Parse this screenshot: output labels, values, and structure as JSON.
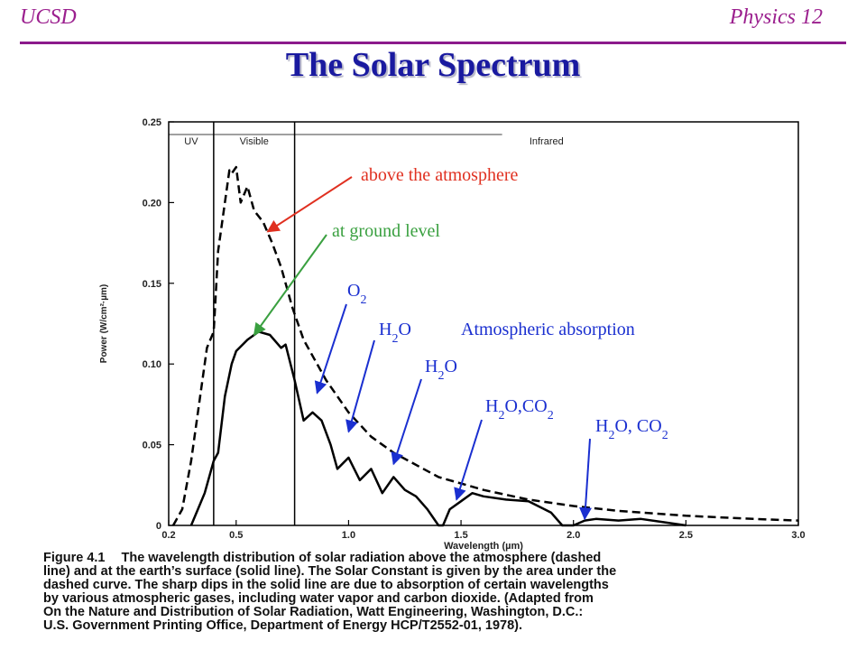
{
  "header": {
    "left": "UCSD",
    "right": "Physics 12"
  },
  "title": "The Solar Spectrum",
  "colors": {
    "header": "#9b1f8e",
    "title": "#1a1aa0",
    "above": "#e03020",
    "ground": "#3aa040",
    "absorb": "#1a2fd0"
  },
  "chart_data": {
    "type": "line",
    "xlabel": "Wavelength (µm)",
    "ylabel": "Power (W/cm²·µm)",
    "xlim": [
      0.2,
      3.0
    ],
    "ylim": [
      0,
      0.25
    ],
    "xticks": [
      "0.2",
      "0.5",
      "1.0",
      "1.5",
      "2.0",
      "2.5",
      "3.0"
    ],
    "xtick_values": [
      0.2,
      0.5,
      1.0,
      1.5,
      2.0,
      2.5,
      3.0
    ],
    "yticks": [
      "0",
      "0.05",
      "0.10",
      "0.15",
      "0.20",
      "0.25"
    ],
    "ytick_values": [
      0,
      0.05,
      0.1,
      0.15,
      0.2,
      0.25
    ],
    "regions": [
      "UV",
      "Visible",
      "Infrared"
    ],
    "region_bounds": [
      0.4,
      0.76
    ],
    "series": [
      {
        "style": "dashed",
        "x": [
          0.22,
          0.26,
          0.3,
          0.32,
          0.35,
          0.37,
          0.4,
          0.42,
          0.45,
          0.47,
          0.48,
          0.5,
          0.52,
          0.55,
          0.58,
          0.62,
          0.66,
          0.7,
          0.75,
          0.8,
          0.9,
          1.0,
          1.1,
          1.2,
          1.4,
          1.6,
          1.8,
          2.0,
          2.2,
          2.5,
          2.8,
          3.0
        ],
        "y": [
          0.0,
          0.01,
          0.04,
          0.06,
          0.09,
          0.11,
          0.12,
          0.17,
          0.2,
          0.22,
          0.218,
          0.222,
          0.2,
          0.21,
          0.195,
          0.188,
          0.175,
          0.16,
          0.135,
          0.115,
          0.09,
          0.07,
          0.055,
          0.045,
          0.03,
          0.022,
          0.016,
          0.012,
          0.009,
          0.006,
          0.004,
          0.003
        ]
      },
      {
        "style": "solid",
        "x": [
          0.3,
          0.33,
          0.36,
          0.4,
          0.42,
          0.45,
          0.48,
          0.5,
          0.55,
          0.6,
          0.65,
          0.7,
          0.72,
          0.76,
          0.8,
          0.84,
          0.88,
          0.92,
          0.95,
          1.0,
          1.05,
          1.1,
          1.15,
          1.2,
          1.25,
          1.3,
          1.35,
          1.4,
          1.42,
          1.45,
          1.5,
          1.55,
          1.6,
          1.7,
          1.8,
          1.9,
          1.95,
          2.0,
          2.05,
          2.1,
          2.2,
          2.3,
          2.4,
          2.5
        ],
        "y": [
          0.0,
          0.01,
          0.02,
          0.04,
          0.045,
          0.08,
          0.1,
          0.108,
          0.115,
          0.12,
          0.118,
          0.11,
          0.112,
          0.09,
          0.065,
          0.07,
          0.065,
          0.05,
          0.035,
          0.042,
          0.028,
          0.035,
          0.02,
          0.03,
          0.022,
          0.018,
          0.01,
          0.0,
          0.0,
          0.01,
          0.015,
          0.02,
          0.018,
          0.016,
          0.015,
          0.008,
          0.0,
          0.0,
          0.003,
          0.004,
          0.003,
          0.004,
          0.002,
          0.0
        ]
      }
    ],
    "annotations": [
      {
        "text": "above the atmosphere",
        "color": "#e03020"
      },
      {
        "text": "at ground level",
        "color": "#3aa040"
      },
      {
        "text": "Atmospheric absorption",
        "color": "#1a2fd0"
      }
    ],
    "absorbers": [
      {
        "base": "O",
        "sub": "2",
        "tail": "",
        "tail_sub": "",
        "x": 0.86,
        "y": 0.082
      },
      {
        "base": "H",
        "sub": "2",
        "tail": "O",
        "tail_sub": "",
        "x": 1.0,
        "y": 0.058
      },
      {
        "base": "H",
        "sub": "2",
        "tail": "O",
        "tail_sub": "",
        "x": 1.2,
        "y": 0.038
      },
      {
        "base": "H",
        "sub": "2",
        "tail": "O,CO",
        "tail_sub": "2",
        "x": 1.48,
        "y": 0.016
      },
      {
        "base": "H",
        "sub": "2",
        "tail": "O, CO",
        "tail_sub": "2",
        "x": 2.05,
        "y": 0.004
      }
    ]
  },
  "caption": {
    "label": "Figure 4.1",
    "text": "The wavelength distribution of solar radiation above the atmosphere (dashed\nline) and at the earth’s surface (solid line). The Solar Constant is given by the area under the\ndashed curve. The sharp dips in the solid line are due to absorption of certain wavelengths\nby various atmospheric gases, including water vapor and carbon dioxide. (Adapted from\nOn the Nature and Distribution of Solar Radiation, Watt Engineering, Washington, D.C.:\nU.S. Government Printing Office, Department of Energy HCP/T2552-01, 1978)."
  }
}
